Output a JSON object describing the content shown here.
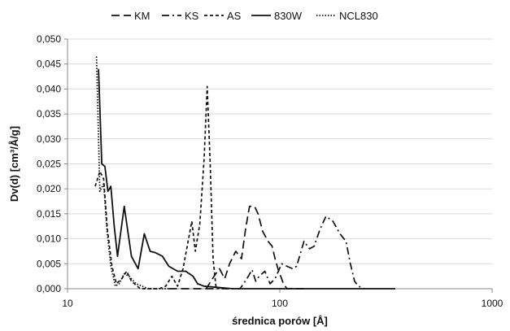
{
  "chart_data": {
    "type": "line",
    "title": "",
    "xlabel": "średnica porów [Å]",
    "ylabel": "Dv(d) [cm³/Å/g]",
    "xscale": "log",
    "xlim": [
      10,
      1000
    ],
    "ylim": [
      0,
      0.05
    ],
    "grid": "horizontal",
    "legend_placement": "top",
    "x_ticks": [
      "10",
      "100",
      "1000"
    ],
    "y_ticks": [
      "0,000",
      "0,005",
      "0,010",
      "0,015",
      "0,020",
      "0,025",
      "0,030",
      "0,035",
      "0,040",
      "0,045",
      "0,050"
    ],
    "series": [
      {
        "name": "KM",
        "style": "longdash",
        "color": "#111111",
        "points": [
          [
            30,
            0
          ],
          [
            45,
            0
          ],
          [
            49,
            0.0025
          ],
          [
            52,
            0.004
          ],
          [
            55,
            0.002
          ],
          [
            58,
            0.005
          ],
          [
            62,
            0.0075
          ],
          [
            66,
            0.006
          ],
          [
            69,
            0.012
          ],
          [
            72,
            0.0165
          ],
          [
            76,
            0.0165
          ],
          [
            79,
            0.015
          ],
          [
            83,
            0.0115
          ],
          [
            88,
            0.0095
          ],
          [
            92,
            0.0085
          ],
          [
            95,
            0.006
          ],
          [
            98,
            0.004
          ],
          [
            101,
            0.0025
          ],
          [
            104,
            0.001
          ],
          [
            108,
            0
          ],
          [
            130,
            0
          ]
        ]
      },
      {
        "name": "KS",
        "style": "dashdot",
        "color": "#111111",
        "points": [
          [
            45,
            0
          ],
          [
            65,
            0
          ],
          [
            70,
            0.002
          ],
          [
            74,
            0.0038
          ],
          [
            77,
            0.0015
          ],
          [
            80,
            0.0025
          ],
          [
            85,
            0.0035
          ],
          [
            90,
            0.001
          ],
          [
            95,
            0.002
          ],
          [
            102,
            0.005
          ],
          [
            108,
            0.0045
          ],
          [
            115,
            0.004
          ],
          [
            120,
            0.0045
          ],
          [
            130,
            0.0095
          ],
          [
            138,
            0.008
          ],
          [
            145,
            0.0085
          ],
          [
            155,
            0.012
          ],
          [
            165,
            0.0145
          ],
          [
            178,
            0.0135
          ],
          [
            192,
            0.011
          ],
          [
            205,
            0.0095
          ],
          [
            215,
            0.005
          ],
          [
            225,
            0.0015
          ],
          [
            235,
            0.0005
          ],
          [
            250,
            0
          ]
        ]
      },
      {
        "name": "AS",
        "style": "shortdash",
        "color": "#111111",
        "points": [
          [
            13.5,
            0.0205
          ],
          [
            14.2,
            0.0235
          ],
          [
            14.8,
            0.022
          ],
          [
            15.4,
            0.012
          ],
          [
            16.2,
            0.0045
          ],
          [
            17,
            0.001
          ],
          [
            18,
            0.002
          ],
          [
            19,
            0.0035
          ],
          [
            20,
            0.0015
          ],
          [
            22,
            0
          ],
          [
            27,
            0
          ],
          [
            29,
            0.0005
          ],
          [
            31,
            0.0025
          ],
          [
            33,
            0.0005
          ],
          [
            35,
            0.004
          ],
          [
            37,
            0.0095
          ],
          [
            38.5,
            0.0135
          ],
          [
            40,
            0.0075
          ],
          [
            42,
            0.013
          ],
          [
            44,
            0.026
          ],
          [
            45.5,
            0.0405
          ],
          [
            47,
            0.025
          ],
          [
            48.5,
            0.006
          ],
          [
            50,
            0.0005
          ],
          [
            52,
            0
          ]
        ]
      },
      {
        "name": "830W",
        "style": "solid",
        "color": "#111111",
        "points": [
          [
            14,
            0.044
          ],
          [
            14.5,
            0.025
          ],
          [
            15,
            0.0245
          ],
          [
            15.5,
            0.0195
          ],
          [
            16,
            0.0205
          ],
          [
            16.6,
            0.0125
          ],
          [
            17.2,
            0.0065
          ],
          [
            18.5,
            0.0165
          ],
          [
            20,
            0.0065
          ],
          [
            21.5,
            0.004
          ],
          [
            23,
            0.011
          ],
          [
            24.5,
            0.0075
          ],
          [
            26,
            0.0072
          ],
          [
            28,
            0.0065
          ],
          [
            30,
            0.0045
          ],
          [
            33,
            0.0035
          ],
          [
            36,
            0.0035
          ],
          [
            39,
            0.0025
          ],
          [
            41,
            0.001
          ],
          [
            44,
            0.0005
          ],
          [
            60,
            0
          ],
          [
            100,
            0
          ],
          [
            200,
            0
          ],
          [
            350,
            0
          ]
        ]
      },
      {
        "name": "NCL830",
        "style": "dotted",
        "color": "#111111",
        "points": [
          [
            13.7,
            0.0465
          ],
          [
            14.2,
            0.0195
          ],
          [
            14.8,
            0.021
          ],
          [
            15.4,
            0.011
          ],
          [
            16,
            0.0045
          ],
          [
            16.8,
            0.0005
          ],
          [
            17.5,
            0.001
          ],
          [
            18.5,
            0.003
          ],
          [
            19.5,
            0.0025
          ],
          [
            21,
            0.001
          ],
          [
            22.5,
            0.0005
          ],
          [
            24,
            0
          ],
          [
            30,
            0
          ]
        ]
      }
    ]
  }
}
